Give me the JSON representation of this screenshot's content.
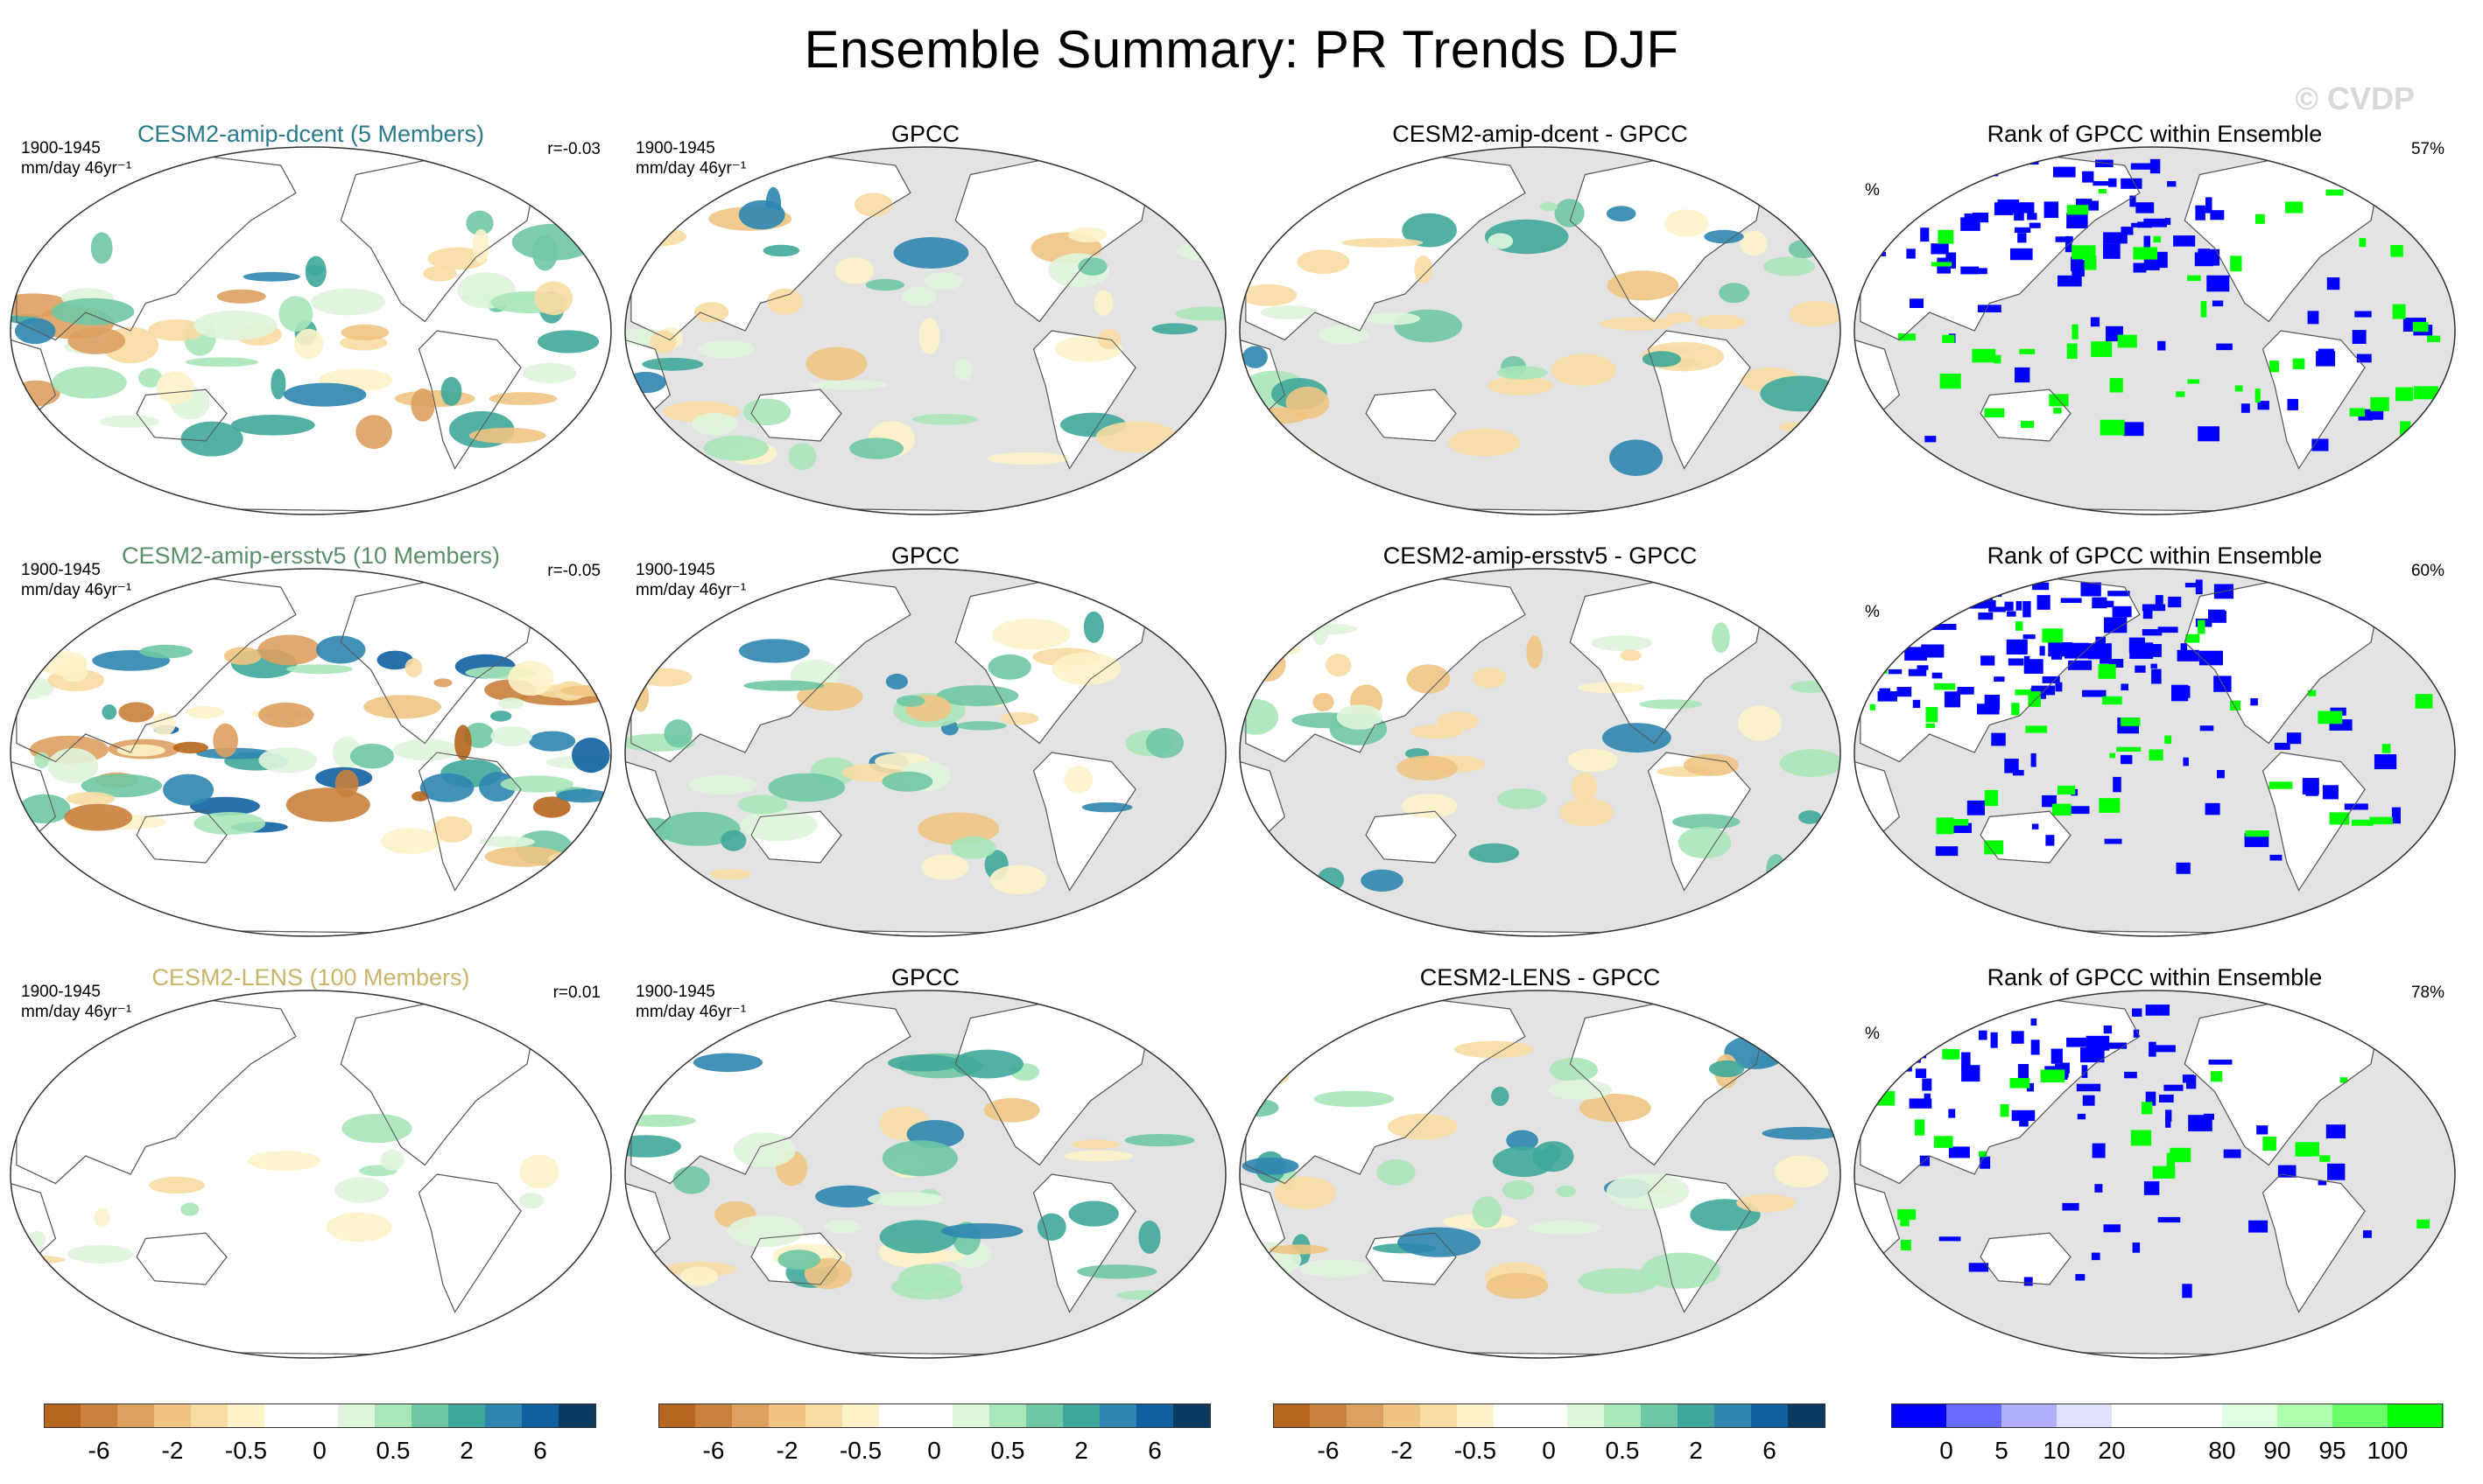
{
  "title": "Ensemble Summary: PR Trends DJF",
  "watermark": "© CVDP",
  "palette": {
    "brown": [
      "#b5651d",
      "#c9803c",
      "#dca05f",
      "#efc483",
      "#f7dca3",
      "#fdf2c8"
    ],
    "green": [
      "#dff5dc",
      "#a8e6b8",
      "#8fd4ac",
      "#54b89a",
      "#2e9c8e",
      "#2670b0",
      "#0b4a7a"
    ],
    "rank_blue": "#0000ff",
    "rank_green": "#00ff00",
    "ocean_gray": "#e3e3e3"
  },
  "rows": [
    {
      "model": {
        "title": "CESM2-amip-dcent (5 Members)",
        "title_color": "#2a7a8a",
        "period": "1900-1945",
        "units": "mm/day 46yr⁻¹",
        "r": "r=-0.03"
      },
      "obs": {
        "title": "GPCC",
        "period": "1900-1945",
        "units": "mm/day 46yr⁻¹"
      },
      "diff": {
        "title": "CESM2-amip-dcent - GPCC"
      },
      "rank": {
        "title": "Rank of GPCC within Ensemble",
        "unit": "%",
        "pct": "57%"
      }
    },
    {
      "model": {
        "title": "CESM2-amip-ersstv5 (10 Members)",
        "title_color": "#5a8f6a",
        "period": "1900-1945",
        "units": "mm/day 46yr⁻¹",
        "r": "r=-0.05"
      },
      "obs": {
        "title": "GPCC",
        "period": "1900-1945",
        "units": "mm/day 46yr⁻¹"
      },
      "diff": {
        "title": "CESM2-amip-ersstv5 - GPCC"
      },
      "rank": {
        "title": "Rank of GPCC within Ensemble",
        "unit": "%",
        "pct": "60%"
      }
    },
    {
      "model": {
        "title": "CESM2-LENS (100 Members)",
        "title_color": "#c8b46a",
        "period": "1900-1945",
        "units": "mm/day 46yr⁻¹",
        "r": "r=0.01"
      },
      "obs": {
        "title": "GPCC",
        "period": "1900-1945",
        "units": "mm/day 46yr⁻¹"
      },
      "diff": {
        "title": "CESM2-LENS - GPCC"
      },
      "rank": {
        "title": "Rank of GPCC within Ensemble",
        "unit": "%",
        "pct": "78%"
      }
    }
  ],
  "colorbars": {
    "trend": {
      "colors": [
        "#b5651d",
        "#c9803c",
        "#dca05f",
        "#efc483",
        "#f7dca3",
        "#fdf2c8",
        "#ffffff",
        "#ffffff",
        "#dff5dc",
        "#a8e6b8",
        "#6fc8a4",
        "#3fa89a",
        "#2e86b0",
        "#1060a0",
        "#0b3a5e"
      ],
      "labels": [
        "-6",
        "-2",
        "-0.5",
        "0",
        "0.5",
        "2",
        "6"
      ]
    },
    "rank": {
      "colors": [
        "#0000ff",
        "#6a6aff",
        "#b0b0ff",
        "#e0e0ff",
        "#ffffff",
        "#ffffff",
        "#e0ffe0",
        "#b0ffb0",
        "#6aff6a",
        "#00ff00"
      ],
      "labels": [
        "0",
        "5",
        "10",
        "20",
        "80",
        "90",
        "95",
        "100"
      ]
    }
  }
}
